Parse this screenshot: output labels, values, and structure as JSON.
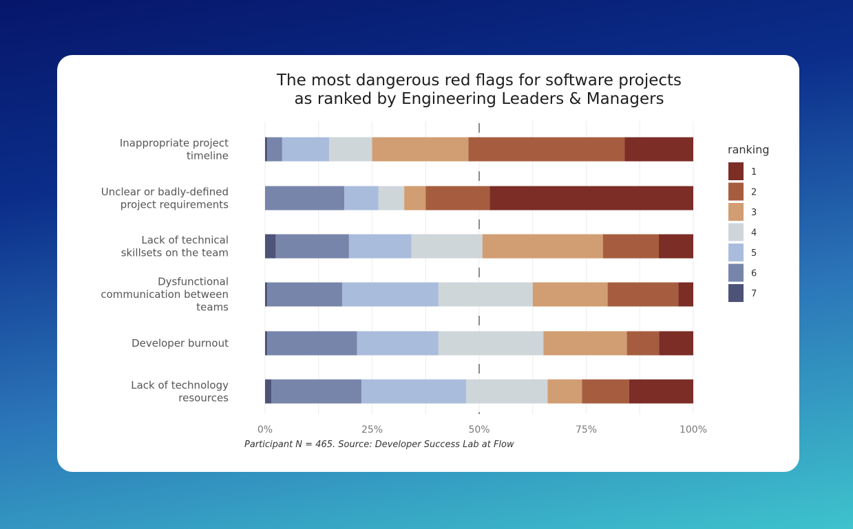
{
  "chart_data": {
    "type": "bar",
    "orientation": "horizontal",
    "stacked": "percent",
    "title": "The most dangerous red flags for software projects",
    "subtitle": "as ranked by Engineering Leaders & Managers",
    "caption": "Participant N = 465. Source: Developer Success Lab at Flow",
    "categories": [
      [
        "Inappropriate project",
        "timeline"
      ],
      [
        "Unclear or badly-defined",
        "project requirements"
      ],
      [
        "Lack of technical",
        "skillsets on the team"
      ],
      [
        "Dysfunctional",
        "communication between",
        "teams"
      ],
      [
        "Developer burnout"
      ],
      [
        "Lack of technology",
        "resources"
      ]
    ],
    "x_ticks": [
      "0%",
      "25%",
      "50%",
      "75%",
      "100%"
    ],
    "xlim": [
      0,
      100
    ],
    "reference_line": 50,
    "legend_title": "ranking",
    "legend_placement": "right",
    "stack_order": [
      "7",
      "6",
      "5",
      "4",
      "3",
      "2",
      "1"
    ],
    "series": [
      {
        "name": "1",
        "color": "#7b2d26",
        "values": [
          16,
          47.5,
          8,
          3.5,
          8,
          15
        ]
      },
      {
        "name": "2",
        "color": "#a65d3f",
        "values": [
          36.5,
          15,
          13,
          16.5,
          7.5,
          11
        ]
      },
      {
        "name": "3",
        "color": "#d19d72",
        "values": [
          22.5,
          5,
          28,
          17.5,
          19.5,
          8
        ]
      },
      {
        "name": "4",
        "color": "#cfd6da",
        "values": [
          10,
          6,
          16.5,
          22,
          24.5,
          19
        ]
      },
      {
        "name": "5",
        "color": "#a9bcdc",
        "values": [
          11,
          8,
          14.5,
          22.5,
          19,
          24.5
        ]
      },
      {
        "name": "6",
        "color": "#7885ab",
        "values": [
          3.5,
          18.5,
          17,
          17.5,
          21,
          21
        ]
      },
      {
        "name": "7",
        "color": "#4e5378",
        "values": [
          0.5,
          0,
          2.5,
          0.5,
          0.5,
          1.5
        ]
      }
    ]
  }
}
